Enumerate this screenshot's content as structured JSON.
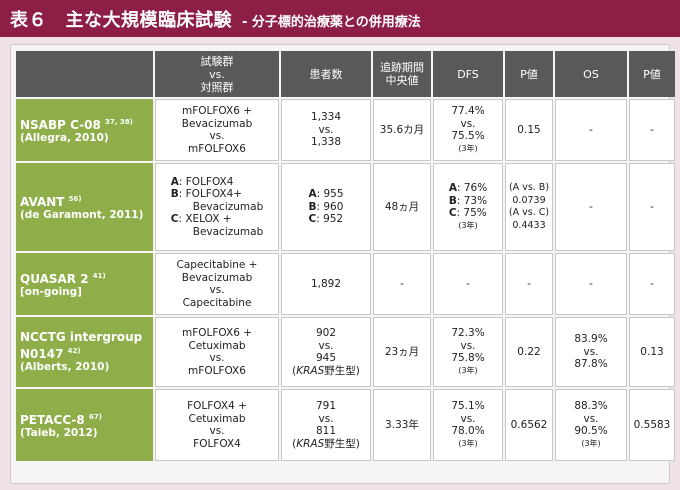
{
  "title": {
    "main": "表６　主な大規模臨床試験",
    "sub": "- 分子標的治療薬との併用療法"
  },
  "headers": {
    "arm_l1": "試験群",
    "arm_l2": "vs.",
    "arm_l3": "対照群",
    "patients": "患者数",
    "followup_l1": "追跡期間",
    "followup_l2": "中央値",
    "dfs": "DFS",
    "p1": "P値",
    "os": "OS",
    "p2": "P値"
  },
  "rows": [
    {
      "name": "NSABP C-08",
      "ref": "37, 38)",
      "cite": "(Allegra, 2010)",
      "arm": [
        "mFOLFOX6 +",
        "Bevacizumab",
        "vs.",
        "mFOLFOX6"
      ],
      "patients": [
        "1,334",
        "vs.",
        "1,338"
      ],
      "followup": "35.6カ月",
      "dfs": [
        "77.4%",
        "vs.",
        "75.5%"
      ],
      "dfs_note": "(3年)",
      "p1": "0.15",
      "os": "-",
      "p2": "-"
    },
    {
      "name": "AVANT",
      "ref": "56)",
      "cite": "(de Garamont, 2011)",
      "arm_a_label": "A",
      "arm_a": ": FOLFOX4",
      "arm_b_label": "B",
      "arm_b": ": FOLFOX4+",
      "arm_b2": "Bevacizumab",
      "arm_c_label": "C",
      "arm_c": ": XELOX +",
      "arm_c2": "Bevacizumab",
      "pat_a": ":  955",
      "pat_b": ":  960",
      "pat_c": ":  952",
      "followup": "48ヵ月",
      "dfs_a": ": 76%",
      "dfs_b": ": 73%",
      "dfs_c": ": 75%",
      "dfs_note": "(3年)",
      "p1": [
        "(A vs. B)",
        "0.0739",
        "(A vs. C)",
        "0.4433"
      ],
      "os": "-",
      "p2": "-"
    },
    {
      "name": "QUASAR 2",
      "ref": "41)",
      "cite": "[on-going]",
      "arm": [
        "Capecitabine +",
        "Bevacizumab",
        "vs.",
        "Capecitabine"
      ],
      "patients": "1,892",
      "followup": "-",
      "dfs": "-",
      "p1": "-",
      "os": "-",
      "p2": "-"
    },
    {
      "name": "NCCTG intergroup",
      "name2": "N0147",
      "ref": "42)",
      "cite": "(Alberts, 2010)",
      "arm": [
        "mFOLFOX6 +",
        "Cetuximab",
        "vs.",
        "mFOLFOX6"
      ],
      "patients": [
        "902",
        "vs.",
        "945"
      ],
      "kras": "KRAS",
      "kras_suffix": "野生型)",
      "followup": "23ヵ月",
      "dfs": [
        "72.3%",
        "vs.",
        "75.8%"
      ],
      "dfs_note": "(3年)",
      "p1": "0.22",
      "os": [
        "83.9%",
        "vs.",
        "87.8%"
      ],
      "p2": "0.13"
    },
    {
      "name": "PETACC-8",
      "ref": "67)",
      "cite": "(Taieb, 2012)",
      "arm": [
        "FOLFOX4 +",
        "Cetuximab",
        "vs.",
        "FOLFOX4"
      ],
      "patients": [
        "791",
        "vs.",
        "811"
      ],
      "kras": "KRAS",
      "kras_suffix": "野生型)",
      "followup": "3.33年",
      "dfs": [
        "75.1%",
        "vs.",
        "78.0%"
      ],
      "dfs_note": "(3年)",
      "p1": "0.6562",
      "os": [
        "88.3%",
        "vs.",
        "90.5%"
      ],
      "os_note": "(3年)",
      "p2": "0.5583"
    }
  ]
}
